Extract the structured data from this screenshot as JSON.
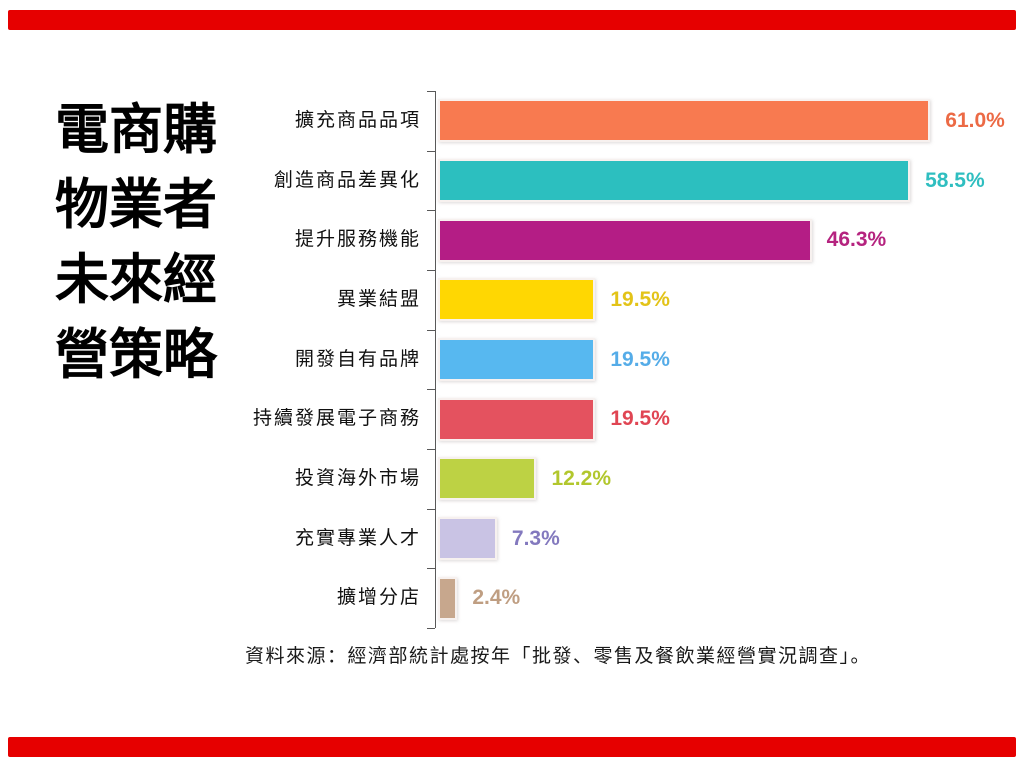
{
  "slide": {
    "background_color": "#ffffff",
    "accent_color": "#e60000",
    "title_lines": [
      "電商購",
      "物業者",
      "未來經",
      "營策略"
    ],
    "title_full": "電商購物業者未來經營策略",
    "source_note": "資料來源：經濟部統計處按年「批發、零售及餐飲業經營實況調查」。"
  },
  "chart_data": {
    "type": "bar",
    "orientation": "horizontal",
    "title": "電商購物業者未來經營策略",
    "xlabel": "",
    "ylabel": "",
    "xlim": [
      0,
      66
    ],
    "grid": false,
    "legend": false,
    "axis_color": "#595959",
    "categories": [
      "擴充商品品項",
      "創造商品差異化",
      "提升服務機能",
      "異業結盟",
      "開發自有品牌",
      "持續發展電子商務",
      "投資海外市場",
      "充實專業人才",
      "擴增分店"
    ],
    "values": [
      61.0,
      58.5,
      46.3,
      19.5,
      19.5,
      19.5,
      12.2,
      7.3,
      2.4
    ],
    "value_labels": [
      "61.0%",
      "58.5%",
      "46.3%",
      "19.5%",
      "19.5%",
      "19.5%",
      "12.2%",
      "7.3%",
      "2.4%"
    ],
    "bar_colors": [
      "#f87a50",
      "#2cbfbf",
      "#b41d85",
      "#ffd702",
      "#57b8f0",
      "#e4525f",
      "#bdd244",
      "#c9c3e4",
      "#c7a78d"
    ],
    "value_label_colors": [
      "#ec6a45",
      "#2fbec0",
      "#b5237f",
      "#e3c318",
      "#55ace8",
      "#e04553",
      "#b2c72d",
      "#8379be",
      "#bf9e82"
    ]
  }
}
